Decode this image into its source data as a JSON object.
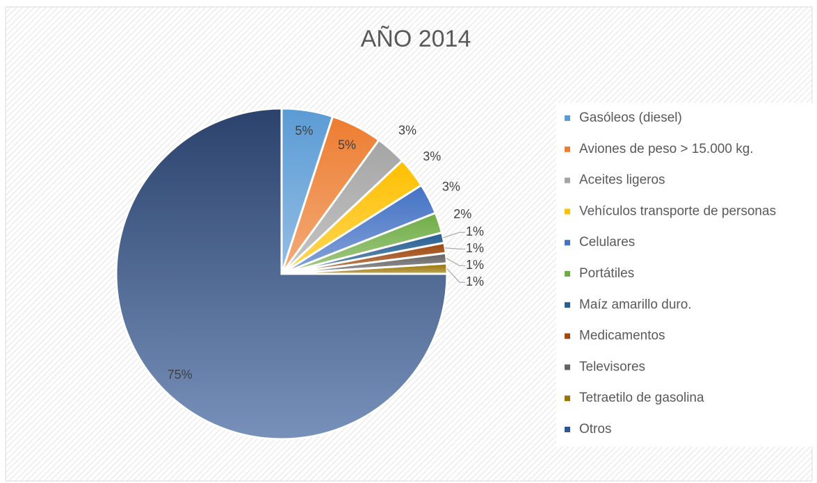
{
  "chart_data": {
    "type": "pie",
    "title": "AÑO 2014",
    "categories": [
      "Gasóleos (diesel)",
      "Aviones de peso > 15.000 kg.",
      "Aceites ligeros",
      "Vehículos transporte de personas",
      "Celulares",
      "Portátiles",
      "Maíz amarillo duro.",
      "Medicamentos",
      "Televisores",
      "Tetraetilo de gasolina",
      "Otros"
    ],
    "values": [
      5,
      5,
      3,
      3,
      3,
      2,
      1,
      1,
      1,
      1,
      75
    ],
    "value_labels": [
      "5%",
      "5%",
      "3%",
      "3%",
      "3%",
      "2%",
      "1%",
      "1%",
      "1%",
      "1%",
      "75%"
    ],
    "colors": [
      "#5b9bd5",
      "#ed7d31",
      "#a5a5a5",
      "#ffc000",
      "#4472c4",
      "#70ad47",
      "#255e91",
      "#9e480e",
      "#636363",
      "#997300",
      "#2f5597"
    ],
    "legend": "right"
  }
}
